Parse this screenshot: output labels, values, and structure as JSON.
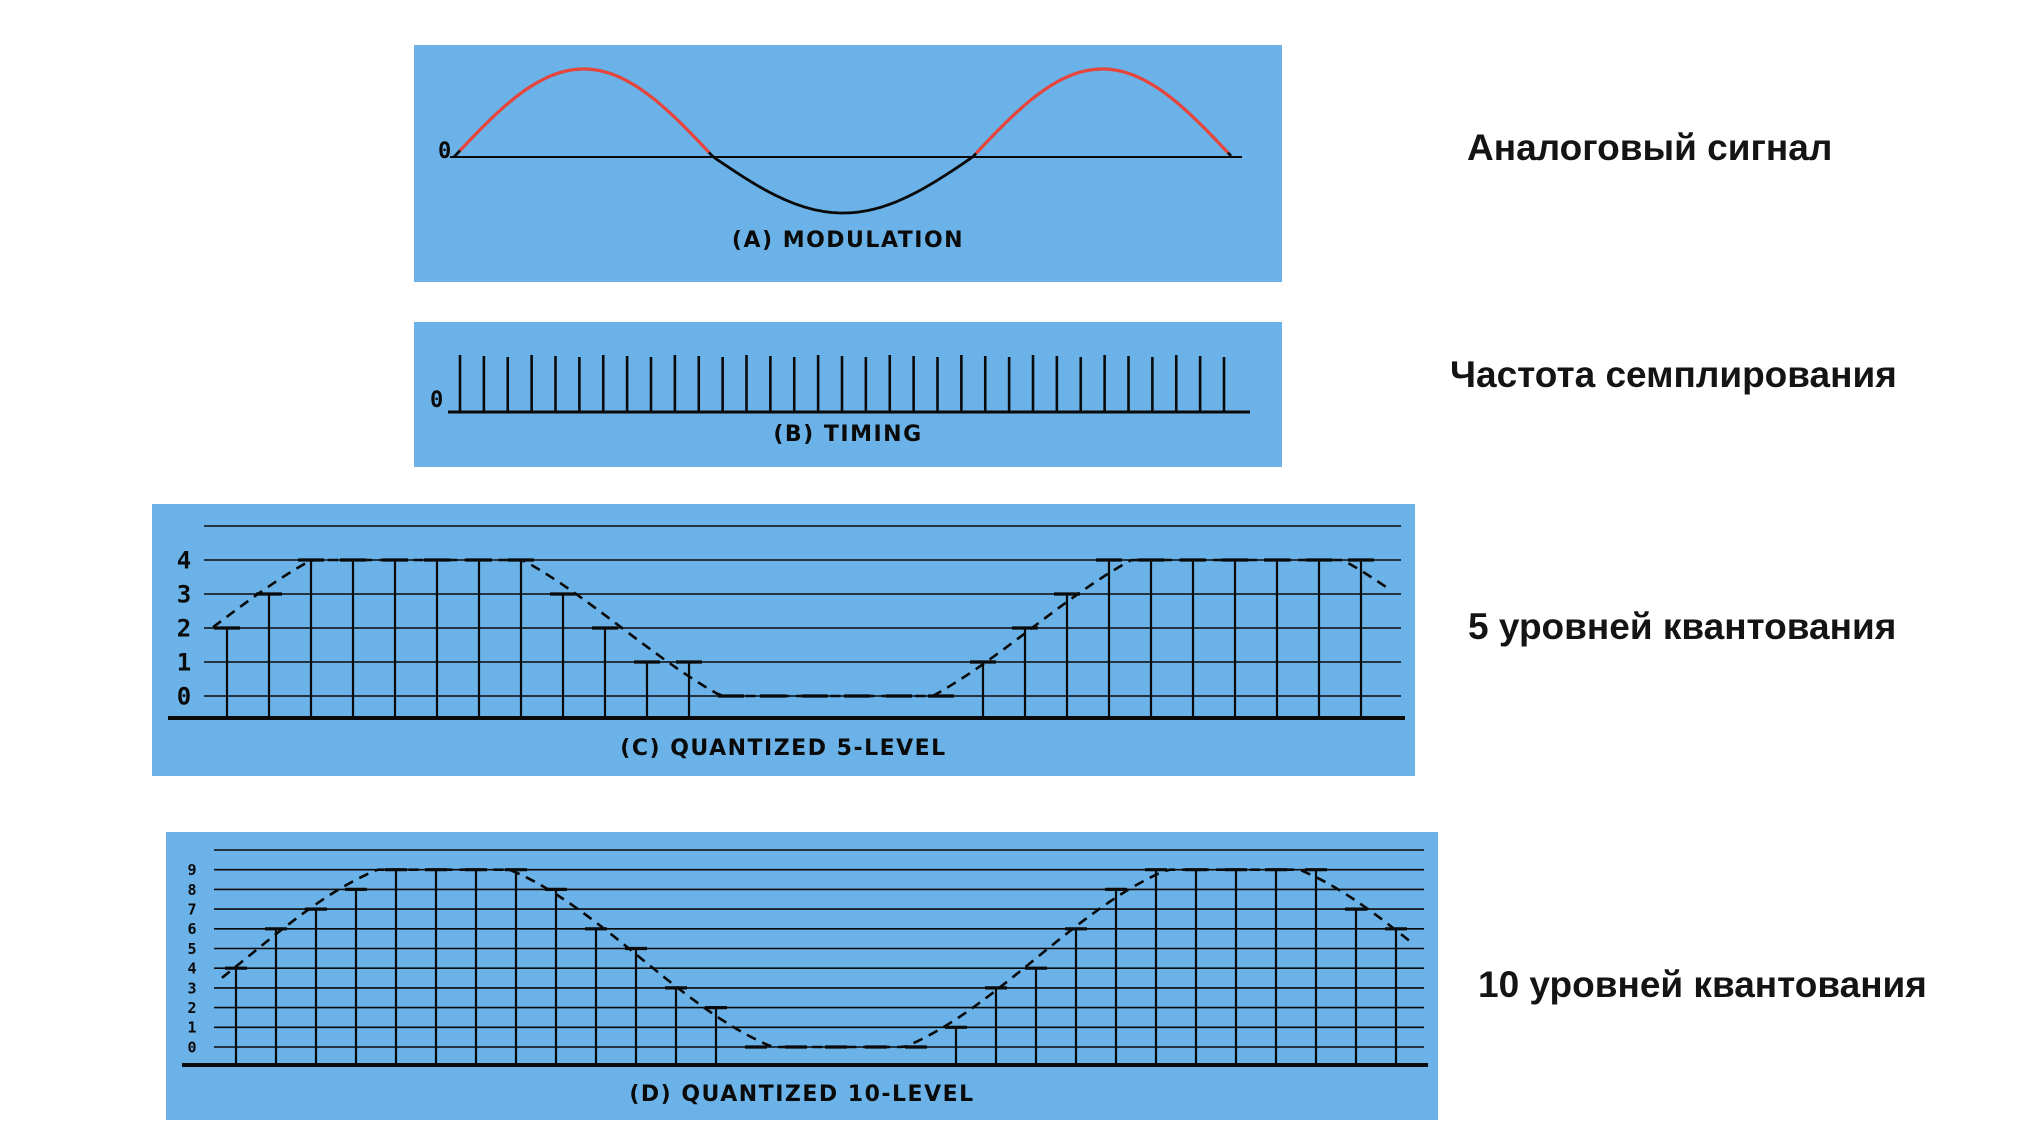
{
  "colors": {
    "panel_bg": "#6ab2e7",
    "wave_red": "#e8453c",
    "ink": "#0a0a0a"
  },
  "side_labels": {
    "analog_signal": "Аналоговый сигнал",
    "sampling_rate": "Частота семплирования",
    "five_levels": "5 уровней квантования",
    "ten_levels": "10 уровней квантования"
  },
  "panels": {
    "a": {
      "caption": "(A)  MODULATION",
      "zero_label": "0"
    },
    "b": {
      "caption": "(B)  TIMING",
      "zero_label": "0",
      "tick_count": 33
    },
    "c": {
      "caption": "(C)  QUANTIZED 5-LEVEL",
      "levels": 5,
      "axis_labels": [
        "4",
        "3",
        "2",
        "1",
        "0"
      ],
      "sample_values": [
        2,
        3,
        4,
        4,
        4,
        4,
        4,
        4,
        3,
        2,
        1,
        1,
        0,
        0,
        0,
        0,
        0,
        0,
        1,
        2,
        3,
        4,
        4,
        4,
        4,
        4,
        4,
        4
      ]
    },
    "d": {
      "caption": "(D)  QUANTIZED 10-LEVEL",
      "levels": 10,
      "axis_labels": [
        "9",
        "8",
        "7",
        "6",
        "5",
        "4",
        "3",
        "2",
        "1",
        "0"
      ],
      "sample_values": [
        4,
        6,
        7,
        8,
        9,
        9,
        9,
        9,
        8,
        6,
        5,
        3,
        2,
        0,
        0,
        0,
        0,
        0,
        1,
        3,
        4,
        6,
        8,
        9,
        9,
        9,
        9,
        9,
        7,
        6
      ]
    }
  }
}
